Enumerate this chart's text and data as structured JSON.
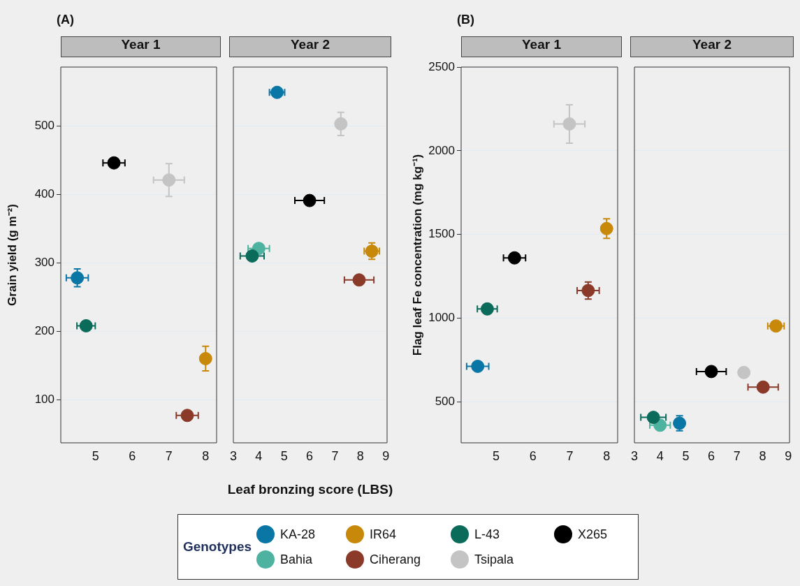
{
  "chart_data": [
    {
      "type": "scatter",
      "title": "Year 1",
      "annotations": [
        "(A)"
      ],
      "legend": "bottom",
      "legend_title": "Genotypes",
      "ylabel": "Grain yield (g m⁻²)",
      "xlim": [
        4.05,
        8.3
      ],
      "xticks": [
        5,
        6,
        7,
        8
      ],
      "ylim": [
        37,
        586
      ],
      "yticks": [
        100,
        200,
        300,
        400,
        500
      ],
      "grid": "y",
      "marker": "circle",
      "series": [
        {
          "name": "KA-28",
          "color": "#0a76a6",
          "x": [
            4.5
          ],
          "values": [
            278
          ],
          "errors": [
            13
          ],
          "xerrors": [
            0.3
          ]
        },
        {
          "name": "IR64",
          "color": "#c8890a",
          "x": [
            8.0
          ],
          "values": [
            160
          ],
          "errors": [
            18
          ],
          "xerrors": [
            null
          ]
        },
        {
          "name": "L-43",
          "color": "#0b6b5a",
          "x": [
            4.74
          ],
          "values": [
            208
          ],
          "errors": [
            null
          ],
          "xerrors": [
            0.25
          ]
        },
        {
          "name": "X265",
          "color": "#000000",
          "x": [
            5.5
          ],
          "values": [
            446
          ],
          "errors": [
            null
          ],
          "xerrors": [
            0.3
          ]
        },
        {
          "name": "Bahia",
          "color": "#4db3a0"
        },
        {
          "name": "Ciherang",
          "color": "#8b3a2a",
          "x": [
            7.5
          ],
          "values": [
            77
          ],
          "errors": [
            null
          ],
          "xerrors": [
            0.3
          ]
        },
        {
          "name": "Tsipala",
          "color": "#c4c4c4",
          "x": [
            7.0
          ],
          "values": [
            421
          ],
          "errors": [
            24
          ],
          "xerrors": [
            0.42
          ]
        }
      ]
    },
    {
      "type": "scatter",
      "title": "Year 2",
      "xlabel": "Leaf bronzing score (LBS)",
      "xlim": [
        3,
        9.05
      ],
      "xticks": [
        3,
        4,
        5,
        6,
        7,
        8,
        9
      ],
      "ylim": [
        37,
        586
      ],
      "yticks": [
        100,
        200,
        300,
        400,
        500
      ],
      "tick_labels": "x",
      "grid": "y",
      "marker": "circle",
      "series": [
        {
          "color": "#0a76a6",
          "x": [
            4.72
          ],
          "values": [
            549
          ],
          "errors": [
            null
          ],
          "xerrors": [
            0.3
          ]
        },
        {
          "color": "#c8890a",
          "x": [
            8.45
          ],
          "values": [
            317
          ],
          "errors": [
            12
          ],
          "xerrors": [
            0.3
          ]
        },
        {
          "color": "#0b6b5a",
          "x": [
            3.74
          ],
          "values": [
            310
          ],
          "errors": [
            null
          ],
          "xerrors": [
            0.47
          ]
        },
        {
          "color": "#000000",
          "x": [
            6.0
          ],
          "values": [
            391
          ],
          "errors": [
            null
          ],
          "xerrors": [
            0.58
          ]
        },
        {
          "color": "#4db3a0",
          "x": [
            4.0
          ],
          "values": [
            321
          ],
          "errors": [
            null
          ],
          "xerrors": [
            0.42
          ]
        },
        {
          "color": "#8b3a2a",
          "x": [
            7.95
          ],
          "values": [
            275
          ],
          "errors": [
            null
          ],
          "xerrors": [
            0.58
          ]
        },
        {
          "color": "#c4c4c4",
          "x": [
            7.23
          ],
          "values": [
            503
          ],
          "errors": [
            17
          ],
          "xerrors": [
            null
          ]
        }
      ]
    },
    {
      "type": "scatter",
      "title": "Year 1",
      "annotations": [
        "(B)"
      ],
      "ylabel": "Flag leaf Fe concentration (mg kg⁻¹)",
      "xlim": [
        4.05,
        8.3
      ],
      "xticks": [
        5,
        6,
        7,
        8
      ],
      "ylim": [
        255,
        2500
      ],
      "yticks": [
        500,
        1000,
        1500,
        2000,
        2500
      ],
      "grid": "y",
      "marker": "circle",
      "series": [
        {
          "color": "#0a76a6",
          "x": [
            4.5
          ],
          "values": [
            712
          ],
          "errors": [
            null
          ],
          "xerrors": [
            0.3
          ]
        },
        {
          "color": "#c8890a",
          "x": [
            8.0
          ],
          "values": [
            1535
          ],
          "errors": [
            58
          ],
          "xerrors": [
            null
          ]
        },
        {
          "color": "#0b6b5a",
          "x": [
            4.76
          ],
          "values": [
            1055
          ],
          "errors": [
            null
          ],
          "xerrors": [
            0.27
          ]
        },
        {
          "color": "#000000",
          "x": [
            5.5
          ],
          "values": [
            1360
          ],
          "errors": [
            null
          ],
          "xerrors": [
            0.3
          ]
        },
        {
          "color": "#8b3a2a",
          "x": [
            7.5
          ],
          "values": [
            1165
          ],
          "errors": [
            51
          ],
          "xerrors": [
            0.3
          ]
        },
        {
          "color": "#c4c4c4",
          "x": [
            6.99
          ],
          "values": [
            2160
          ],
          "errors": [
            115
          ],
          "xerrors": [
            0.42
          ]
        }
      ]
    },
    {
      "type": "scatter",
      "title": "Year 2",
      "xlim": [
        3,
        9.05
      ],
      "xticks": [
        3,
        4,
        5,
        6,
        7,
        8,
        9
      ],
      "ylim": [
        255,
        2500
      ],
      "yticks": [
        500,
        1000,
        1500,
        2000,
        2500
      ],
      "tick_labels": "x",
      "grid": "y",
      "marker": "circle",
      "series": [
        {
          "color": "#0a76a6",
          "x": [
            4.76
          ],
          "values": [
            372
          ],
          "errors": [
            45
          ],
          "xerrors": [
            null
          ]
        },
        {
          "color": "#c8890a",
          "x": [
            8.52
          ],
          "values": [
            953
          ],
          "errors": [
            null
          ],
          "xerrors": [
            0.32
          ]
        },
        {
          "color": "#0b6b5a",
          "x": [
            3.74
          ],
          "values": [
            407
          ],
          "errors": [
            null
          ],
          "xerrors": [
            0.49
          ]
        },
        {
          "color": "#000000",
          "x": [
            6.0
          ],
          "values": [
            681
          ],
          "errors": [
            null
          ],
          "xerrors": [
            0.58
          ]
        },
        {
          "color": "#4db3a0",
          "x": [
            4.0
          ],
          "values": [
            360
          ],
          "errors": [
            null
          ],
          "xerrors": [
            0.4
          ]
        },
        {
          "color": "#8b3a2a",
          "x": [
            8.02
          ],
          "values": [
            588
          ],
          "errors": [
            null
          ],
          "xerrors": [
            0.59
          ]
        },
        {
          "color": "#c4c4c4",
          "x": [
            7.27
          ],
          "values": [
            675
          ],
          "errors": [
            null
          ],
          "xerrors": [
            null
          ]
        }
      ]
    }
  ]
}
